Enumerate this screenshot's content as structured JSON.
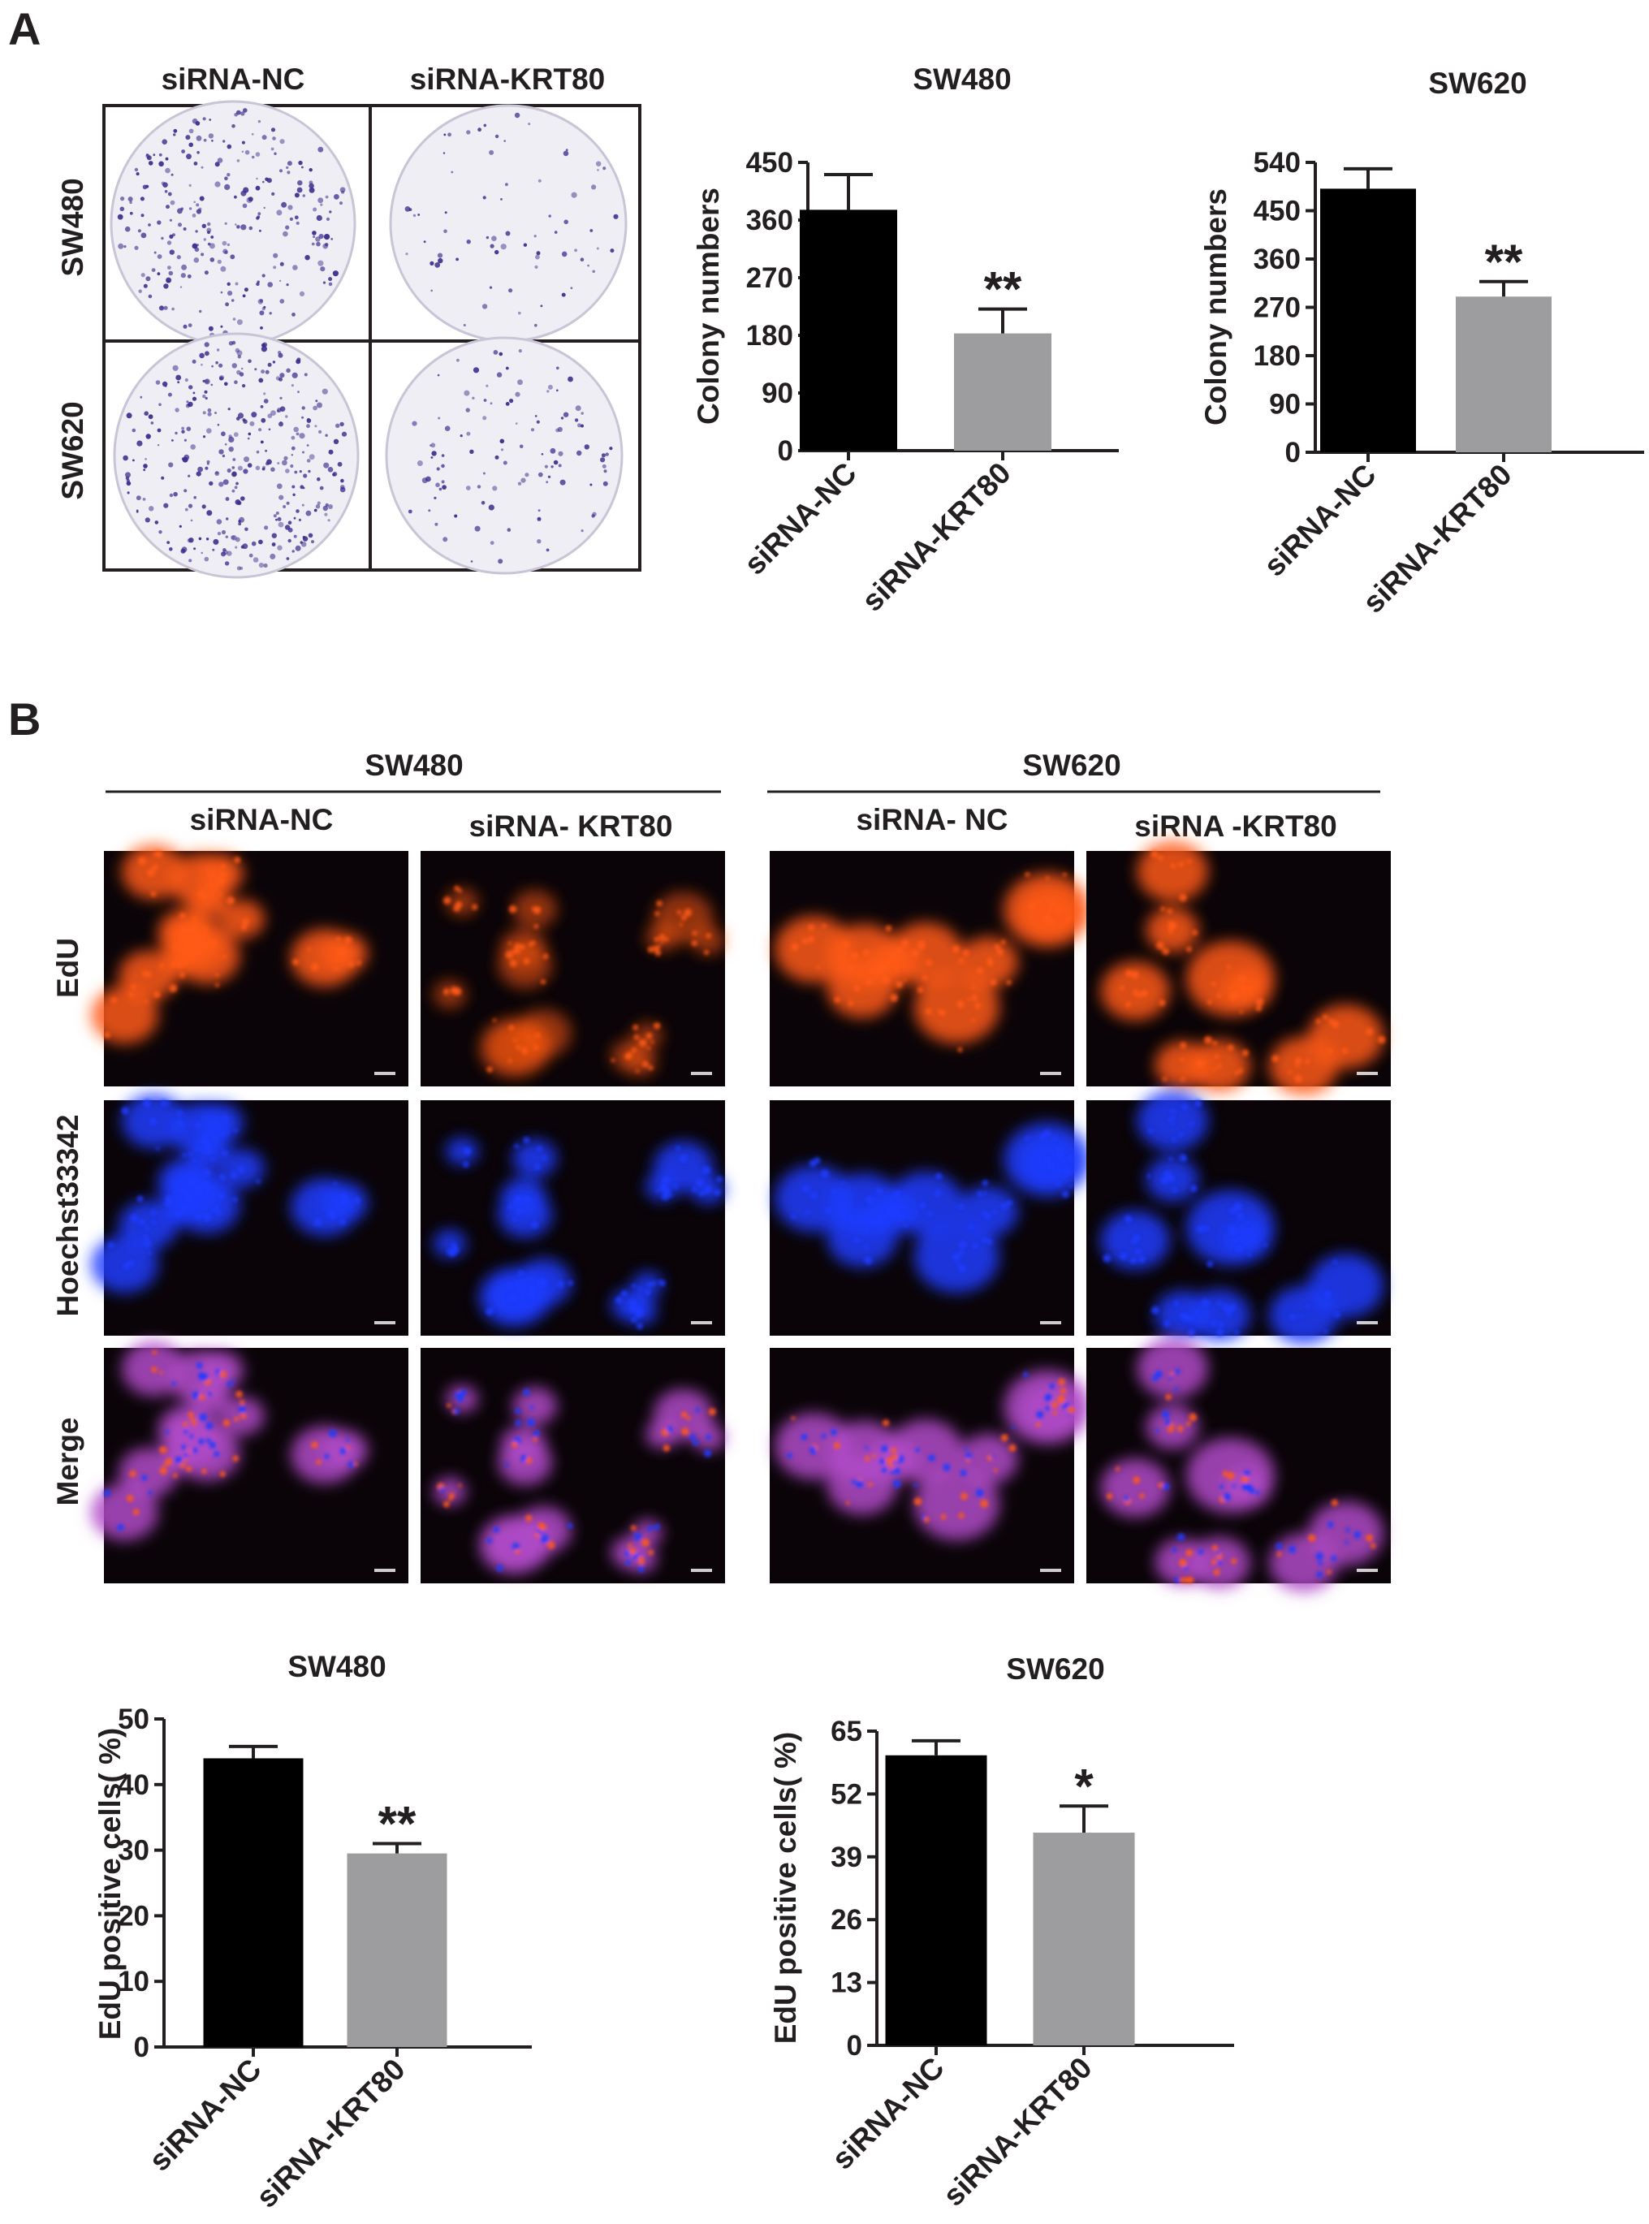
{
  "panels": [
    {
      "letter": "A",
      "colony_plate_grid": {
        "columns": [
          "siRNA-NC",
          "siRNA-KRT80"
        ],
        "rows": [
          "SW480",
          "SW620"
        ],
        "dot_color": "#3b2a8c",
        "plate_fill": "#eeeef4"
      }
    },
    {
      "letter": "B",
      "fluorescence_grid": {
        "groups": [
          {
            "cell_line": "SW480",
            "conditions": [
              "siRNA-NC",
              "siRNA- KRT80"
            ]
          },
          {
            "cell_line": "SW620",
            "conditions": [
              "siRNA- NC",
              "siRNA -KRT80"
            ]
          }
        ],
        "channels": [
          "EdU",
          "Hoechst33342",
          "Merge"
        ],
        "channel_colors": {
          "EdU": "#ff5a14",
          "Hoechst33342": "#1e3cff",
          "Merge": "#b04ac8"
        },
        "background": "#0a0408"
      }
    }
  ],
  "chart_data": [
    {
      "type": "bar",
      "panel": "A",
      "title": "SW480",
      "categories": [
        "siRNA-NC",
        "siRNA-KRT80"
      ],
      "values": [
        376,
        183
      ],
      "errors": [
        55,
        38
      ],
      "significance": [
        "",
        "**"
      ],
      "xlabel": "",
      "ylabel": "Colony numbers",
      "ylim": [
        0,
        450
      ],
      "yticks": [
        0,
        90,
        180,
        270,
        360,
        450
      ],
      "colors": [
        "#000000",
        "#9d9d9f"
      ],
      "grid": false
    },
    {
      "type": "bar",
      "panel": "A",
      "title": "SW620",
      "categories": [
        "siRNA-NC",
        "siRNA-KRT80"
      ],
      "values": [
        491,
        290
      ],
      "errors": [
        37,
        28
      ],
      "significance": [
        "",
        "**"
      ],
      "xlabel": "",
      "ylabel": "Colony numbers",
      "ylim": [
        0,
        540
      ],
      "yticks": [
        0,
        90,
        180,
        270,
        360,
        450,
        540
      ],
      "colors": [
        "#000000",
        "#9d9d9f"
      ],
      "grid": false
    },
    {
      "type": "bar",
      "panel": "B",
      "title": "SW480",
      "categories": [
        "siRNA-NC",
        "siRNA-KRT80"
      ],
      "values": [
        44,
        29.5
      ],
      "errors": [
        1.8,
        1.5
      ],
      "significance": [
        "",
        "**"
      ],
      "xlabel": "",
      "ylabel": "EdU positive cells( %)",
      "ylim": [
        0,
        50
      ],
      "yticks": [
        0,
        10,
        20,
        30,
        40,
        50
      ],
      "colors": [
        "#000000",
        "#9d9d9f"
      ],
      "grid": false
    },
    {
      "type": "bar",
      "panel": "B",
      "title": "SW620",
      "categories": [
        "siRNA-NC",
        "siRNA-KRT80"
      ],
      "values": [
        60,
        44
      ],
      "errors": [
        3,
        5.5
      ],
      "significance": [
        "",
        "*"
      ],
      "xlabel": "",
      "ylabel": "EdU positive cells( %)",
      "ylim": [
        0,
        65
      ],
      "yticks": [
        0,
        13,
        26,
        39,
        52,
        65
      ],
      "colors": [
        "#000000",
        "#9d9d9f"
      ],
      "grid": false
    }
  ]
}
